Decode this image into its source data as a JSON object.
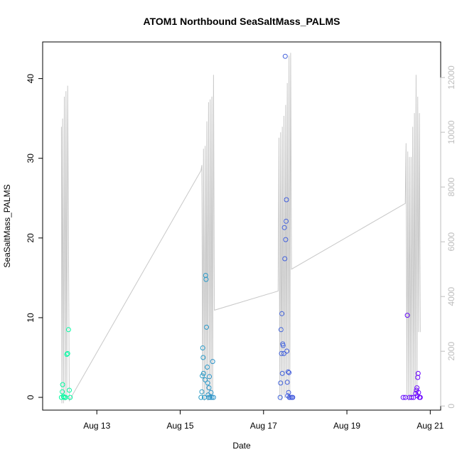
{
  "chart_data": {
    "type": "scatter",
    "title": "ATOM1 Northbound SeaSaltMass_PALMS",
    "xlabel": "Date",
    "ylabel": "SeaSaltMass_PALMS",
    "x_ticks": [
      "Aug 13",
      "Aug 15",
      "Aug 17",
      "Aug 19",
      "Aug 21"
    ],
    "x_tick_days": [
      13,
      15,
      17,
      19,
      21
    ],
    "xlim": [
      11.7,
      21.25
    ],
    "ylim": [
      -1.6,
      44.6
    ],
    "y_ticks": [
      0,
      10,
      20,
      30,
      40
    ],
    "y2_ticks": [
      0,
      2000,
      4000,
      6000,
      8000,
      10000,
      12000
    ],
    "y2lim": [
      -150,
      13300
    ],
    "y2_color": "#bdbdbd",
    "point_color_start": "#00ffa0",
    "point_color_end": "#6a00ff",
    "series": [
      {
        "values": [
          [
            12.15,
            0
          ],
          [
            12.17,
            0.7
          ],
          [
            12.18,
            1.6
          ],
          [
            12.2,
            0.1
          ],
          [
            12.22,
            0
          ],
          [
            12.25,
            0
          ],
          [
            12.28,
            5.4
          ],
          [
            12.3,
            5.5
          ],
          [
            12.32,
            8.5
          ],
          [
            12.34,
            0.9
          ],
          [
            12.36,
            0
          ],
          [
            15.5,
            0
          ],
          [
            15.52,
            0.7
          ],
          [
            15.53,
            2.7
          ],
          [
            15.54,
            6.2
          ],
          [
            15.55,
            5.0
          ],
          [
            15.56,
            3.0
          ],
          [
            15.58,
            0
          ],
          [
            15.6,
            2.2
          ],
          [
            15.61,
            15.3
          ],
          [
            15.62,
            14.8
          ],
          [
            15.63,
            8.8
          ],
          [
            15.65,
            3.8
          ],
          [
            15.66,
            1.8
          ],
          [
            15.67,
            0.3
          ],
          [
            15.68,
            0
          ],
          [
            15.69,
            1.2
          ],
          [
            15.7,
            2.6
          ],
          [
            15.72,
            0
          ],
          [
            15.74,
            0.6
          ],
          [
            15.76,
            0
          ],
          [
            15.78,
            4.5
          ],
          [
            15.8,
            0
          ],
          [
            17.4,
            0
          ],
          [
            17.41,
            1.8
          ],
          [
            17.42,
            8.5
          ],
          [
            17.43,
            5.5
          ],
          [
            17.44,
            10.5
          ],
          [
            17.45,
            3.0
          ],
          [
            17.46,
            6.7
          ],
          [
            17.47,
            6.5
          ],
          [
            17.49,
            5.5
          ],
          [
            17.5,
            21.3
          ],
          [
            17.51,
            17.4
          ],
          [
            17.52,
            42.8
          ],
          [
            17.53,
            19.8
          ],
          [
            17.54,
            22.1
          ],
          [
            17.55,
            24.8
          ],
          [
            17.56,
            5.8
          ],
          [
            17.57,
            1.9
          ],
          [
            17.58,
            0.2
          ],
          [
            17.59,
            3.2
          ],
          [
            17.6,
            0.6
          ],
          [
            17.61,
            3.1
          ],
          [
            17.62,
            0
          ],
          [
            17.65,
            0
          ],
          [
            17.68,
            0
          ],
          [
            17.7,
            0
          ],
          [
            20.35,
            0
          ],
          [
            20.4,
            0
          ],
          [
            20.45,
            10.3
          ],
          [
            20.5,
            0
          ],
          [
            20.55,
            0
          ],
          [
            20.6,
            0
          ],
          [
            20.65,
            0.5
          ],
          [
            20.67,
            0.9
          ],
          [
            20.68,
            1.2
          ],
          [
            20.69,
            0.2
          ],
          [
            20.7,
            2.5
          ],
          [
            20.71,
            3.0
          ],
          [
            20.72,
            0.6
          ],
          [
            20.74,
            0
          ],
          [
            20.76,
            0
          ]
        ]
      },
      {
        "axis": "right",
        "values": [
          [
            12.15,
            10200
          ],
          [
            12.16,
            100
          ],
          [
            12.18,
            10500
          ],
          [
            12.2,
            100
          ],
          [
            12.22,
            11300
          ],
          [
            12.24,
            200
          ],
          [
            12.26,
            11500
          ],
          [
            12.28,
            300
          ],
          [
            12.3,
            11700
          ],
          [
            12.34,
            200
          ],
          [
            15.5,
            8600
          ],
          [
            15.52,
            8800
          ],
          [
            15.54,
            300
          ],
          [
            15.56,
            9400
          ],
          [
            15.58,
            200
          ],
          [
            15.6,
            9500
          ],
          [
            15.62,
            300
          ],
          [
            15.64,
            10400
          ],
          [
            15.66,
            200
          ],
          [
            15.68,
            11100
          ],
          [
            15.7,
            400
          ],
          [
            15.72,
            11200
          ],
          [
            15.74,
            300
          ],
          [
            15.76,
            11300
          ],
          [
            15.78,
            400
          ],
          [
            15.8,
            12100
          ],
          [
            15.82,
            3500
          ],
          [
            17.35,
            4200
          ],
          [
            17.37,
            9800
          ],
          [
            17.39,
            300
          ],
          [
            17.41,
            10000
          ],
          [
            17.43,
            200
          ],
          [
            17.45,
            10200
          ],
          [
            17.47,
            400
          ],
          [
            17.49,
            10600
          ],
          [
            17.51,
            300
          ],
          [
            17.53,
            11000
          ],
          [
            17.55,
            500
          ],
          [
            17.57,
            11800
          ],
          [
            17.59,
            300
          ],
          [
            17.61,
            12800
          ],
          [
            17.63,
            400
          ],
          [
            17.65,
            12900
          ],
          [
            17.67,
            5000
          ],
          [
            20.4,
            7400
          ],
          [
            20.42,
            9600
          ],
          [
            20.44,
            300
          ],
          [
            20.46,
            9300
          ],
          [
            20.48,
            200
          ],
          [
            20.5,
            9100
          ],
          [
            20.52,
            300
          ],
          [
            20.54,
            9100
          ],
          [
            20.56,
            300
          ],
          [
            20.58,
            10200
          ],
          [
            20.6,
            400
          ],
          [
            20.62,
            10700
          ],
          [
            20.64,
            300
          ],
          [
            20.66,
            12100
          ],
          [
            20.68,
            400
          ],
          [
            20.7,
            11300
          ],
          [
            20.72,
            2700
          ],
          [
            20.74,
            10700
          ],
          [
            20.76,
            2700
          ]
        ]
      }
    ],
    "grid": false,
    "legend": "none"
  }
}
